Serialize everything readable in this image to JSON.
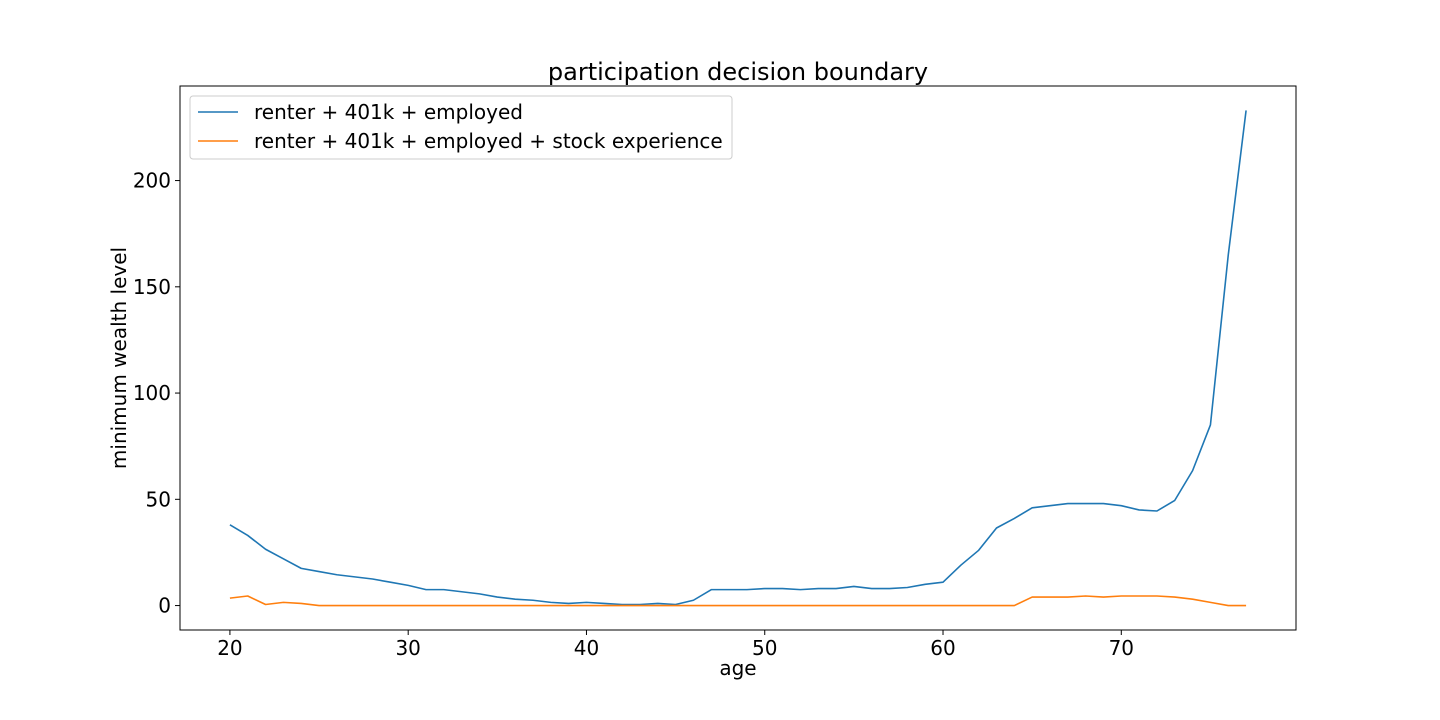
{
  "chart_data": {
    "type": "line",
    "title": "participation decision boundary",
    "xlabel": "age",
    "ylabel": "minimum wealth level",
    "xlim": [
      17.2,
      79.8
    ],
    "ylim": [
      -11.5,
      244.5
    ],
    "xticks": [
      20,
      30,
      40,
      50,
      60,
      70
    ],
    "yticks": [
      0,
      50,
      100,
      150,
      200
    ],
    "grid": false,
    "legend_position": "top-left",
    "x": [
      20,
      21,
      22,
      23,
      24,
      25,
      26,
      27,
      28,
      29,
      30,
      31,
      32,
      33,
      34,
      35,
      36,
      37,
      38,
      39,
      40,
      41,
      42,
      43,
      44,
      45,
      46,
      47,
      48,
      49,
      50,
      51,
      52,
      53,
      54,
      55,
      56,
      57,
      58,
      59,
      60,
      61,
      62,
      63,
      64,
      65,
      66,
      67,
      68,
      69,
      70,
      71,
      72,
      73,
      74,
      75,
      76,
      77
    ],
    "series": [
      {
        "name": "renter + 401k + employed",
        "color": "#1f77b4",
        "values": [
          38,
          33,
          26.5,
          22,
          17.5,
          16,
          14.5,
          13.5,
          12.5,
          11,
          9.5,
          7.5,
          7.5,
          6.5,
          5.5,
          4,
          3,
          2.5,
          1.5,
          1,
          1.5,
          1,
          0.5,
          0.5,
          1,
          0.5,
          2.5,
          7.5,
          7.5,
          7.5,
          8,
          8,
          7.5,
          8,
          8,
          9,
          8,
          8,
          8.5,
          10,
          11,
          19,
          26,
          36.5,
          41,
          46,
          47,
          48,
          48,
          48,
          47,
          45,
          44.5,
          49.5,
          63.5,
          85,
          165,
          233
        ]
      },
      {
        "name": "renter + 401k + employed + stock experience",
        "color": "#ff7f0e",
        "values": [
          3.5,
          4.5,
          0.5,
          1.5,
          1,
          0,
          0,
          0,
          0,
          0,
          0,
          0,
          0,
          0,
          0,
          0,
          0,
          0,
          0,
          0,
          0,
          0,
          0,
          0,
          0,
          0,
          0,
          0,
          0,
          0,
          0,
          0,
          0,
          0,
          0,
          0,
          0,
          0,
          0,
          0,
          0,
          0,
          0,
          0,
          0,
          4,
          4,
          4,
          4.5,
          4,
          4.5,
          4.5,
          4.5,
          4,
          3,
          1.5,
          0,
          0
        ]
      }
    ]
  }
}
